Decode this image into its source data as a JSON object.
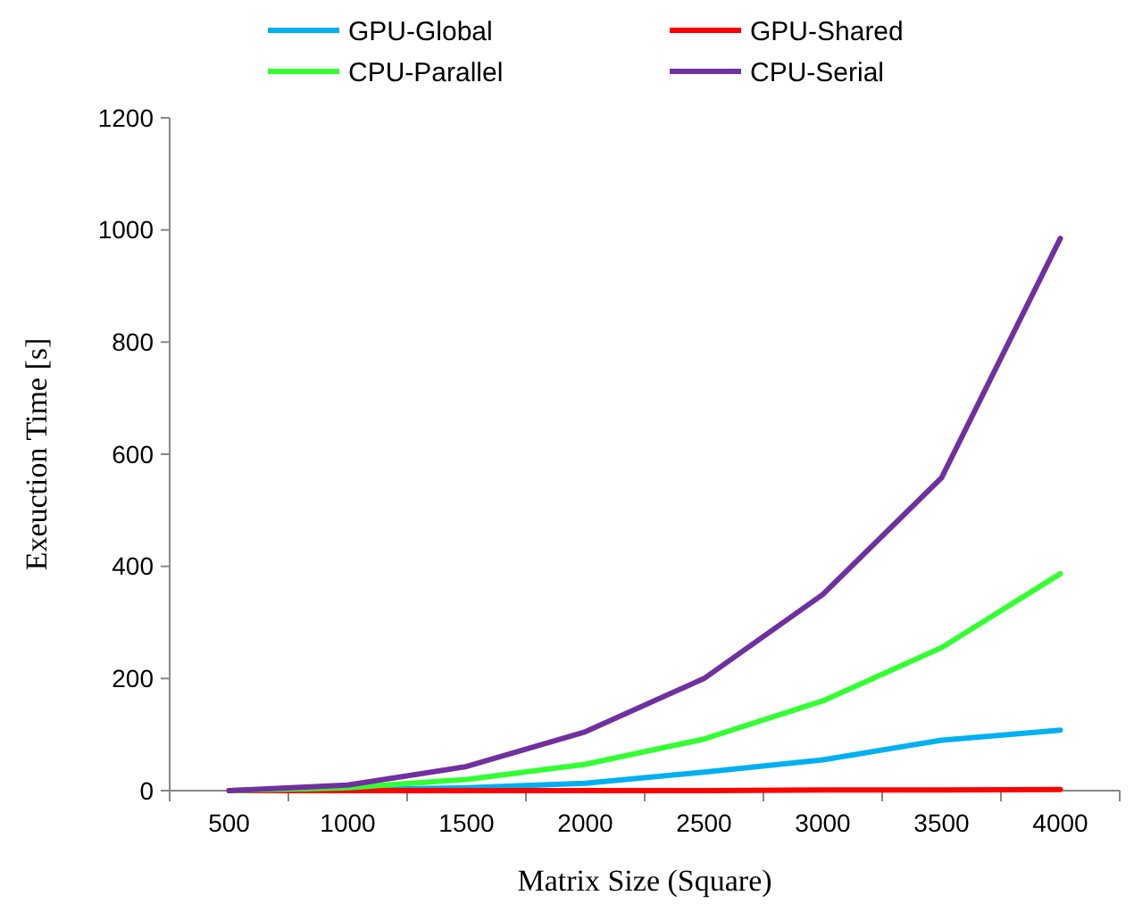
{
  "chart_data": {
    "type": "line",
    "xlabel": "Matrix Size (Square)",
    "ylabel": "Exeuction Time [s]",
    "categories": [
      "500",
      "1000",
      "1500",
      "2000",
      "2500",
      "3000",
      "3500",
      "4000"
    ],
    "series": [
      {
        "name": "GPU-Global",
        "color": "#00b0f0",
        "values": [
          0,
          2,
          5,
          13,
          33,
          55,
          90,
          108
        ]
      },
      {
        "name": "GPU-Shared",
        "color": "#ff0000",
        "values": [
          0,
          0,
          0,
          0,
          0,
          1,
          1,
          2
        ]
      },
      {
        "name": "CPU-Parallel",
        "color": "#33ff33",
        "values": [
          0,
          5,
          20,
          47,
          92,
          160,
          255,
          387
        ]
      },
      {
        "name": "CPU-Serial",
        "color": "#7030a0",
        "values": [
          0,
          10,
          43,
          105,
          200,
          350,
          558,
          985
        ]
      }
    ],
    "ylim": [
      0,
      1200
    ],
    "yticks": [
      0,
      200,
      400,
      600,
      800,
      1000,
      1200
    ],
    "grid": false,
    "legend": "top",
    "marker": "none",
    "line_style": "solid"
  }
}
